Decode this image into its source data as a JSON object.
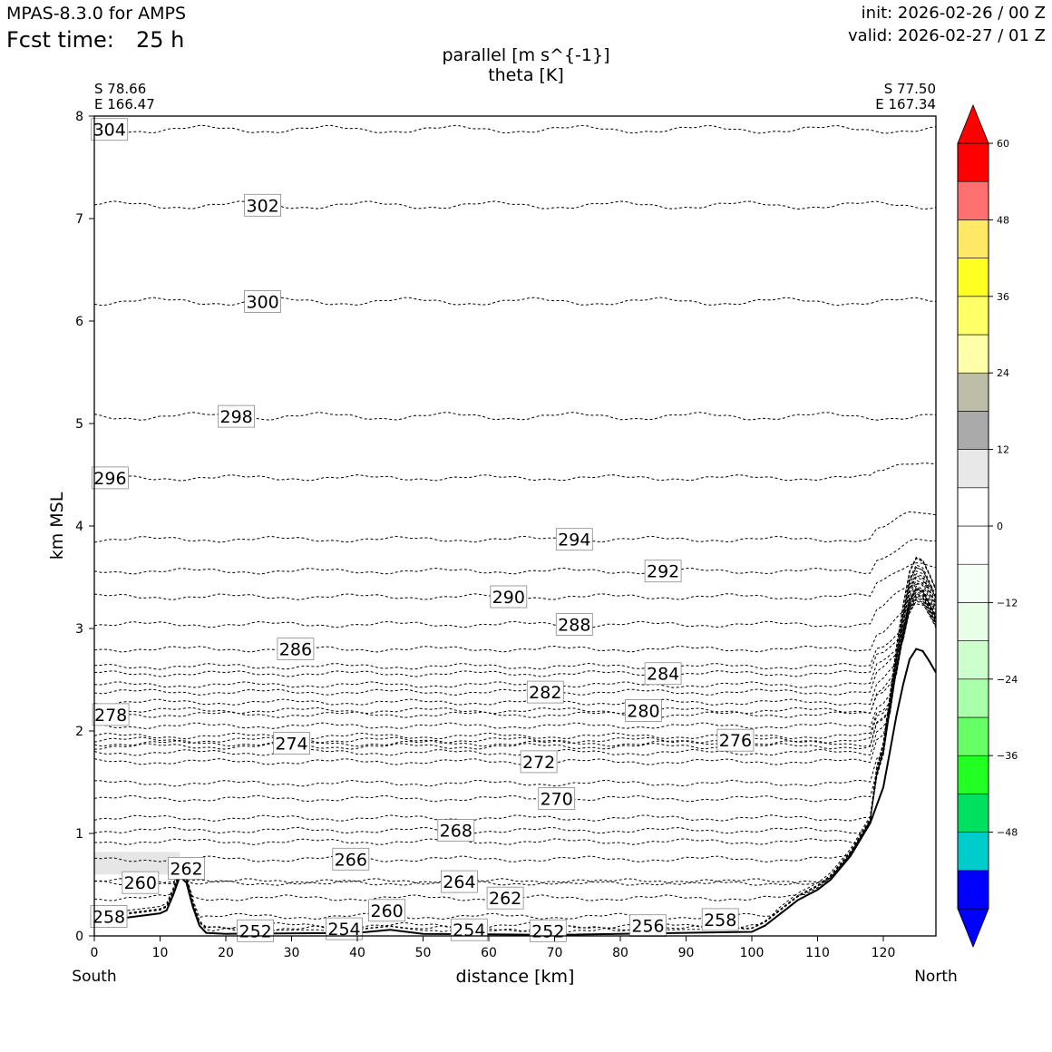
{
  "header": {
    "model": "MPAS-8.3.0 for AMPS",
    "fcst_label": "Fcst time:",
    "fcst_value": "25 h",
    "init": "init: 2026-02-26 / 00 Z",
    "valid": "valid: 2026-02-27 / 01 Z"
  },
  "chart_data": {
    "type": "cross-section",
    "title": "parallel [m s^{-1}]",
    "subtitle": "theta [K]",
    "xlabel": "distance [km]",
    "ylabel": "km MSL",
    "xlim": [
      0,
      128
    ],
    "ylim": [
      0,
      8
    ],
    "x_ticks": [
      "0",
      "10",
      "20",
      "30",
      "40",
      "50",
      "60",
      "70",
      "80",
      "90",
      "100",
      "110",
      "120"
    ],
    "x_tick_values": [
      0,
      10,
      20,
      30,
      40,
      50,
      60,
      70,
      80,
      90,
      100,
      110,
      120
    ],
    "y_ticks": [
      "0",
      "1",
      "2",
      "3",
      "4",
      "5",
      "6",
      "7",
      "8"
    ],
    "y_tick_values": [
      0,
      1,
      2,
      3,
      4,
      5,
      6,
      7,
      8
    ],
    "left_end": {
      "lat": "S 78.66",
      "lon": "E 166.47",
      "direction": "South"
    },
    "right_end": {
      "lat": "S 77.50",
      "lon": "E 167.34",
      "direction": "North"
    },
    "colorbar": {
      "bounds": [
        -60,
        -54,
        -48,
        -42,
        -36,
        -30,
        -24,
        -18,
        -12,
        -6,
        0,
        6,
        12,
        18,
        24,
        30,
        36,
        42,
        48,
        54,
        60
      ],
      "colors": [
        "#0000ff",
        "#00cccc",
        "#00e060",
        "#22ff22",
        "#66ff66",
        "#aaffaa",
        "#ccffcc",
        "#e6ffe6",
        "#f5fff5",
        "#ffffff",
        "#ffffff",
        "#e8e8e8",
        "#aaaaaa",
        "#bdbda8",
        "#ffffaa",
        "#ffff66",
        "#ffff22",
        "#ffe866",
        "#ff7070",
        "#ff0000"
      ],
      "tick_labels": [
        "−48",
        "−36",
        "−24",
        "−12",
        "0",
        "12",
        "24",
        "36",
        "48",
        "60"
      ],
      "tick_values": [
        -48,
        -36,
        -24,
        -12,
        0,
        12,
        24,
        36,
        48,
        60
      ]
    },
    "terrain": [
      [
        0,
        0.15
      ],
      [
        5,
        0.18
      ],
      [
        10,
        0.22
      ],
      [
        11,
        0.25
      ],
      [
        12,
        0.4
      ],
      [
        13,
        0.58
      ],
      [
        14,
        0.52
      ],
      [
        15,
        0.28
      ],
      [
        16,
        0.1
      ],
      [
        17,
        0.03
      ],
      [
        20,
        0.02
      ],
      [
        40,
        0.03
      ],
      [
        45,
        0.06
      ],
      [
        50,
        0.02
      ],
      [
        70,
        0.01
      ],
      [
        100,
        0.04
      ],
      [
        102,
        0.1
      ],
      [
        105,
        0.25
      ],
      [
        107,
        0.35
      ],
      [
        110,
        0.45
      ],
      [
        112,
        0.55
      ],
      [
        115,
        0.78
      ],
      [
        118,
        1.1
      ],
      [
        120,
        1.45
      ],
      [
        121,
        1.8
      ],
      [
        122,
        2.15
      ],
      [
        123,
        2.45
      ],
      [
        124,
        2.7
      ],
      [
        125,
        2.8
      ],
      [
        126,
        2.78
      ],
      [
        127,
        2.68
      ],
      [
        128,
        2.57
      ]
    ],
    "shaded_region": {
      "x_range": [
        0,
        13
      ],
      "y_range": [
        0.6,
        0.82
      ],
      "value_range": "6 to 12"
    },
    "isentropes": [
      {
        "theta": 304,
        "label": "304",
        "x": 2.3,
        "y": 7.87
      },
      {
        "theta": 302,
        "label": "302",
        "x": 25.6,
        "y": 7.13
      },
      {
        "theta": 300,
        "label": "300",
        "x": 25.6,
        "y": 6.19
      },
      {
        "theta": 298,
        "label": "298",
        "x": 21.6,
        "y": 5.07
      },
      {
        "theta": 296,
        "label": "296",
        "x": 2.4,
        "y": 4.47
      },
      {
        "theta": 294,
        "label": "294",
        "x": 73.0,
        "y": 3.87
      },
      {
        "theta": 292,
        "label": "292",
        "x": 86.5,
        "y": 3.56
      },
      {
        "theta": 290,
        "label": "290",
        "x": 63.0,
        "y": 3.31
      },
      {
        "theta": 288,
        "label": "288",
        "x": 73.0,
        "y": 3.04
      },
      {
        "theta": 286,
        "label": "286",
        "x": 30.6,
        "y": 2.8
      },
      {
        "theta": 284,
        "label": "284",
        "x": 86.5,
        "y": 2.56
      },
      {
        "theta": 282,
        "label": "282",
        "x": 68.6,
        "y": 2.38
      },
      {
        "theta": 280,
        "label": "280",
        "x": 83.5,
        "y": 2.2
      },
      {
        "theta": 278,
        "label": "278",
        "x": 2.5,
        "y": 2.16
      },
      {
        "theta": 276,
        "label": "276",
        "x": 97.5,
        "y": 1.91
      },
      {
        "theta": 274,
        "label": "274",
        "x": 30.0,
        "y": 1.88
      },
      {
        "theta": 272,
        "label": "272",
        "x": 67.6,
        "y": 1.7
      },
      {
        "theta": 270,
        "label": "270",
        "x": 70.3,
        "y": 1.34
      },
      {
        "theta": 268,
        "label": "268",
        "x": 55.0,
        "y": 1.03
      },
      {
        "theta": 266,
        "label": "266",
        "x": 39.0,
        "y": 0.75
      },
      {
        "theta": 264,
        "label": "264",
        "x": 55.5,
        "y": 0.53
      },
      {
        "theta": 262,
        "label": "262",
        "x": 62.5,
        "y": 0.37
      },
      {
        "theta": 262,
        "label": "262",
        "x": 14.0,
        "y": 0.66
      },
      {
        "theta": 260,
        "label": "260",
        "x": 7.0,
        "y": 0.52
      },
      {
        "theta": 260,
        "label": "260",
        "x": 44.5,
        "y": 0.25
      },
      {
        "theta": 258,
        "label": "258",
        "x": 2.2,
        "y": 0.19
      },
      {
        "theta": 258,
        "label": "258",
        "x": 95.2,
        "y": 0.16
      },
      {
        "theta": 256,
        "label": "256",
        "x": 84.2,
        "y": 0.1
      },
      {
        "theta": 254,
        "label": "254",
        "x": 38.0,
        "y": 0.07
      },
      {
        "theta": 254,
        "label": "254",
        "x": 57.0,
        "y": 0.06
      },
      {
        "theta": 252,
        "label": "252",
        "x": 24.5,
        "y": 0.05
      },
      {
        "theta": 252,
        "label": "252",
        "x": 69.0,
        "y": 0.05
      }
    ],
    "unlabeled_isentropes": [
      {
        "theta": 284.5,
        "y": 2.63
      },
      {
        "theta": 283,
        "y": 2.45
      },
      {
        "theta": 281,
        "y": 2.28
      },
      {
        "theta": 279,
        "y": 2.05
      },
      {
        "theta": 277,
        "y": 1.95
      },
      {
        "theta": 275,
        "y": 1.85
      },
      {
        "theta": 273,
        "y": 1.79
      },
      {
        "theta": 271,
        "y": 1.49
      },
      {
        "theta": 269,
        "y": 1.15
      },
      {
        "theta": 267,
        "y": 0.92
      }
    ]
  }
}
